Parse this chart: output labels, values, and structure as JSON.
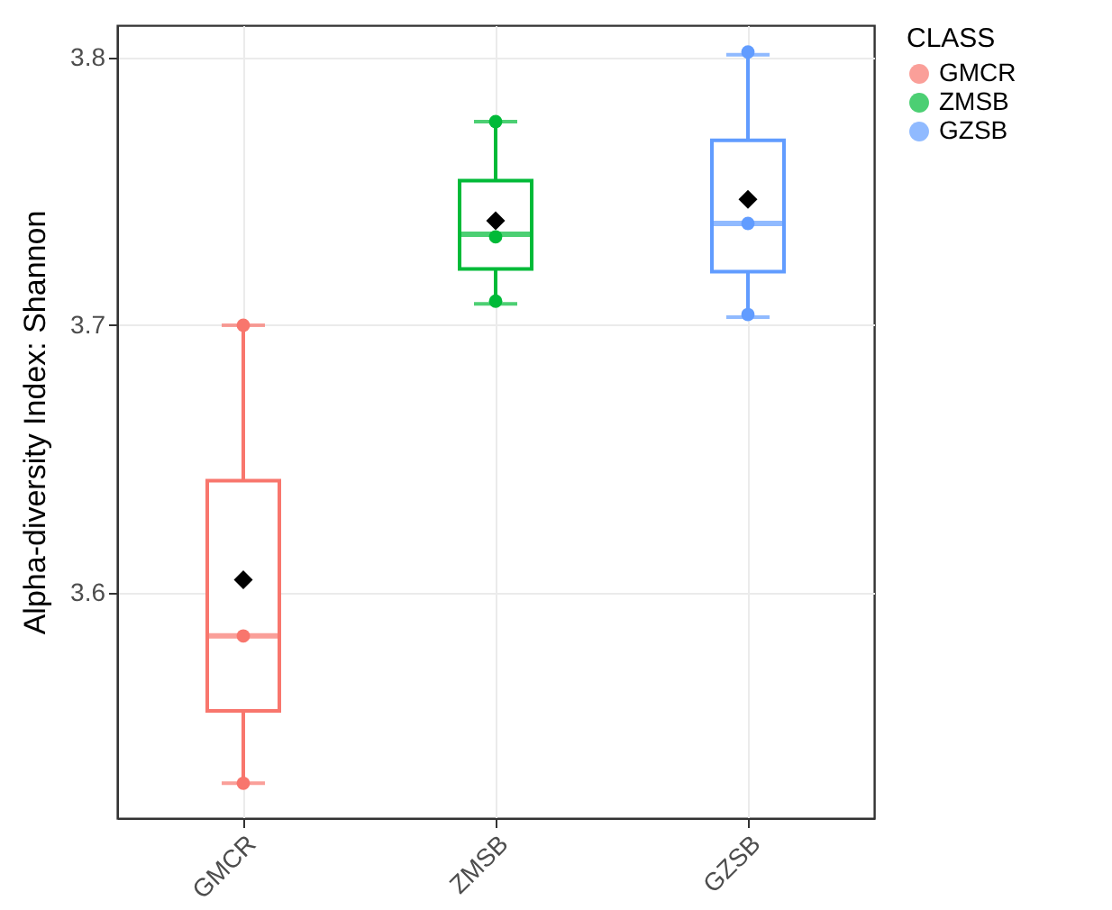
{
  "chart_data": {
    "type": "box",
    "ylabel": "Alpha-diversity Index: Shannon",
    "legend_title": "CLASS",
    "legend": "right",
    "grid": true,
    "marker": "circle",
    "categories": [
      "GMCR",
      "ZMSB",
      "GZSB"
    ],
    "colors": [
      "#f8766d",
      "#00ba38",
      "#619cff"
    ],
    "boxes": [
      {
        "low": 3.529,
        "q1": 3.556,
        "median": 3.584,
        "q3": 3.642,
        "high": 3.7,
        "mean": 3.605
      },
      {
        "low": 3.708,
        "q1": 3.721,
        "median": 3.734,
        "q3": 3.754,
        "high": 3.776,
        "mean": 3.739
      },
      {
        "low": 3.703,
        "q1": 3.72,
        "median": 3.738,
        "q3": 3.769,
        "high": 3.801,
        "mean": 3.747
      }
    ],
    "ylim": [
      3.516,
      3.812
    ],
    "yticks": [
      3.6,
      3.7,
      3.8
    ],
    "series": [
      {
        "name": "GMCR",
        "color": "#f8766d",
        "type": "scatter",
        "x": [
          "GMCR",
          "GMCR",
          "GMCR"
        ],
        "values": [
          3.7,
          3.584,
          3.529
        ]
      },
      {
        "name": "ZMSB",
        "color": "#00ba38",
        "type": "scatter",
        "x": [
          "ZMSB",
          "ZMSB",
          "ZMSB"
        ],
        "values": [
          3.776,
          3.733,
          3.709
        ]
      },
      {
        "name": "GZSB",
        "color": "#619cff",
        "type": "scatter",
        "x": [
          "GZSB",
          "GZSB",
          "GZSB"
        ],
        "values": [
          3.802,
          3.738,
          3.704
        ]
      }
    ]
  }
}
